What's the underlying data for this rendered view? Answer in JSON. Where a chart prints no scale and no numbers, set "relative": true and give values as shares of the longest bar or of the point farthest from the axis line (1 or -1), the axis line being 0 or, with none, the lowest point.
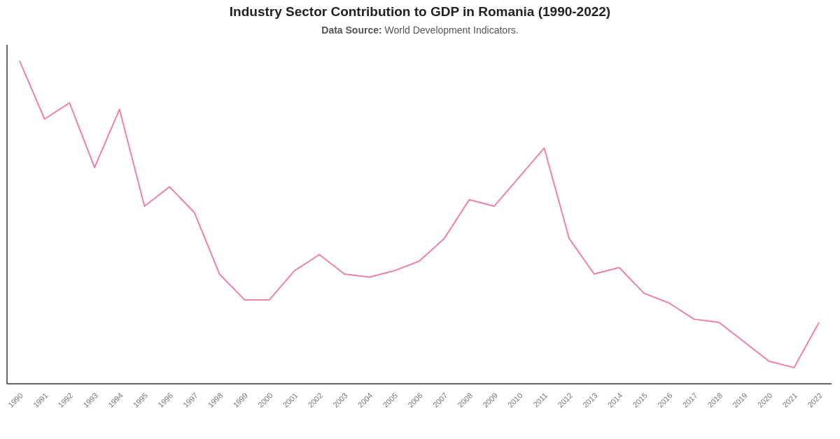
{
  "chart_data": {
    "type": "line",
    "title": "Industry Sector Contribution to GDP in Romania (1990-2022)",
    "subtitle": "Data Source: World Development Indicators.",
    "categories": [
      "1990",
      "1991",
      "1992",
      "1993",
      "1994",
      "1995",
      "1996",
      "1997",
      "1998",
      "1999",
      "2000",
      "2001",
      "2002",
      "2003",
      "2004",
      "2005",
      "2006",
      "2007",
      "2008",
      "2009",
      "2010",
      "2011",
      "2012",
      "2013",
      "2014",
      "2015",
      "2016",
      "2017",
      "2018",
      "2019",
      "2020",
      "2021",
      "2022"
    ],
    "series": [
      {
        "color": "#ef7fab",
        "values": [
          1.0,
          0.82,
          0.87,
          0.67,
          0.85,
          0.55,
          0.61,
          0.53,
          0.34,
          0.26,
          0.26,
          0.35,
          0.4,
          0.34,
          0.33,
          0.35,
          0.38,
          0.45,
          0.57,
          0.55,
          0.64,
          0.73,
          0.45,
          0.34,
          0.36,
          0.28,
          0.25,
          0.2,
          0.19,
          0.13,
          0.07,
          0.05,
          0.19
        ]
      }
    ],
    "relative": true
  }
}
